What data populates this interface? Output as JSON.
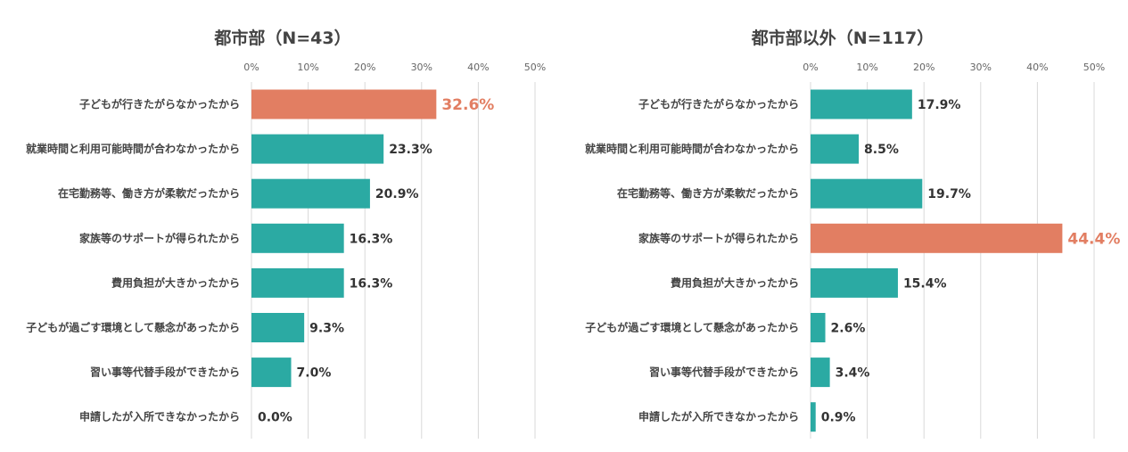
{
  "colors": {
    "bar": "#2BAAA3",
    "highlight": "#E27E62",
    "highlight_text": "#E27E62"
  },
  "chart_data": [
    {
      "type": "bar",
      "orientation": "horizontal",
      "title": "都市部（N=43）",
      "xlim": [
        0,
        50
      ],
      "ticks": [
        "0%",
        "10%",
        "20%",
        "30%",
        "40%",
        "50%"
      ],
      "categories": [
        "子どもが行きたがらなかったから",
        "就業時間と利用可能時間が合わなかったから",
        "在宅勤務等、働き方が柔軟だったから",
        "家族等のサポートが得られたから",
        "費用負担が大きかったから",
        "子どもが過ごす環境として懸念があったから",
        "習い事等代替手段ができたから",
        "申請したが入所できなかったから"
      ],
      "values": [
        32.6,
        23.3,
        20.9,
        16.3,
        16.3,
        9.3,
        7.0,
        0.0
      ],
      "value_labels": [
        "32.6%",
        "23.3%",
        "20.9%",
        "16.3%",
        "16.3%",
        "9.3%",
        "7.0%",
        "0.0%"
      ],
      "highlight_index": 0,
      "grid": true
    },
    {
      "type": "bar",
      "orientation": "horizontal",
      "title": "都市部以外（N=117）",
      "xlim": [
        0,
        50
      ],
      "ticks": [
        "0%",
        "10%",
        "20%",
        "30%",
        "40%",
        "50%"
      ],
      "categories": [
        "子どもが行きたがらなかったから",
        "就業時間と利用可能時間が合わなかったから",
        "在宅勤務等、働き方が柔軟だったから",
        "家族等のサポートが得られたから",
        "費用負担が大きかったから",
        "子どもが過ごす環境として懸念があったから",
        "習い事等代替手段ができたから",
        "申請したが入所できなかったから"
      ],
      "values": [
        17.9,
        8.5,
        19.7,
        44.4,
        15.4,
        2.6,
        3.4,
        0.9
      ],
      "value_labels": [
        "17.9%",
        "8.5%",
        "19.7%",
        "44.4%",
        "15.4%",
        "2.6%",
        "3.4%",
        "0.9%"
      ],
      "highlight_index": 3,
      "grid": true
    }
  ]
}
